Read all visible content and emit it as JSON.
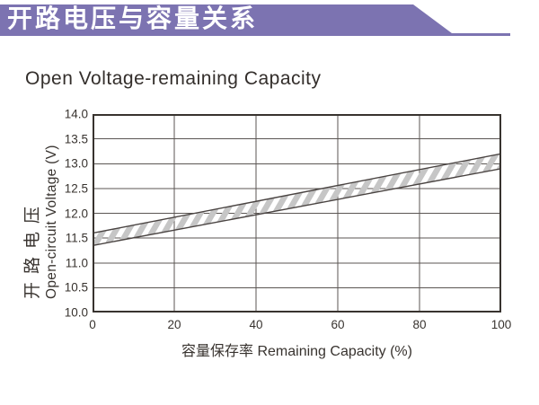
{
  "banner": {
    "title": "开路电压与容量关系",
    "bg_color": "#7c73b1",
    "text_color": "#ffffff"
  },
  "page": {
    "subtitle": "Open Voltage-remaining Capacity"
  },
  "chart_data": {
    "type": "area",
    "title": "Open Voltage-remaining Capacity",
    "xlabel": "容量保存率 Remaining Capacity (%)",
    "ylabel_zh": "开路电压",
    "ylabel_en": "Open-circuit Voltage (V)",
    "xlim": [
      0,
      100
    ],
    "ylim": [
      10.0,
      14.0
    ],
    "x_ticks": [
      0,
      20,
      40,
      60,
      80,
      100
    ],
    "y_ticks": [
      10.0,
      10.5,
      11.0,
      11.5,
      12.0,
      12.5,
      13.0,
      13.5,
      14.0
    ],
    "grid": true,
    "legend": "none",
    "band": {
      "name": "open-circuit voltage tolerance band (hatched)",
      "x": [
        0,
        100
      ],
      "upper": [
        11.6,
        13.2
      ],
      "lower": [
        11.35,
        12.9
      ]
    },
    "colors": {
      "hatch": "#c6c6c6",
      "band_line": "#4a4442",
      "grid": "#5b5653",
      "border": "#38332f",
      "text": "#38332f"
    }
  }
}
